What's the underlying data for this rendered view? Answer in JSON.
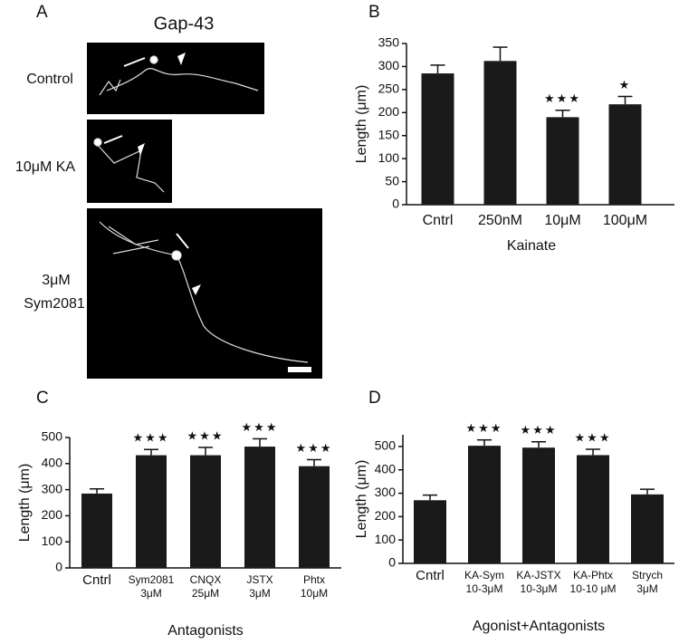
{
  "panel_a": {
    "letter": "A",
    "title": "Gap-43",
    "labels": [
      "Control",
      "10μM KA",
      "3μM",
      "Sym2081"
    ]
  },
  "chart_data": [
    {
      "type": "bar",
      "panel_label": "B",
      "ylabel": "Length (μm)",
      "xlabel": "Kainate",
      "categories": [
        "Cntrl",
        "250nM",
        "10μM",
        "100μM"
      ],
      "values": [
        285,
        312,
        190,
        218
      ],
      "errors": [
        18,
        30,
        15,
        17
      ],
      "significance": [
        null,
        null,
        "★★★",
        "★"
      ],
      "color": "#1a1a1a",
      "ylim": [
        0,
        350
      ],
      "yticks": [
        0,
        50,
        100,
        150,
        200,
        250,
        300,
        350
      ]
    },
    {
      "type": "bar",
      "panel_label": "C",
      "ylabel": "Length (μm)",
      "xlabel": "Antagonists",
      "categories": [
        [
          "Cntrl"
        ],
        [
          "Sym2081",
          "3μM"
        ],
        [
          "CNQX",
          "25μM"
        ],
        [
          "JSTX",
          "3μM"
        ],
        [
          "Phtx",
          "10μM"
        ]
      ],
      "values": [
        285,
        432,
        432,
        465,
        390
      ],
      "errors": [
        18,
        22,
        30,
        30,
        25
      ],
      "significance": [
        null,
        "★★★",
        "★★★",
        "★★★",
        "★★★"
      ],
      "color": "#1a1a1a",
      "ylim": [
        0,
        500
      ],
      "yticks": [
        0,
        100,
        200,
        300,
        400,
        500
      ]
    },
    {
      "type": "bar",
      "panel_label": "D",
      "ylabel": "Length (μm)",
      "xlabel": "Agonist+Antagonists",
      "categories": [
        [
          "Cntrl"
        ],
        [
          "KA-Sym",
          "10-3μM"
        ],
        [
          "KA-JSTX",
          "10-3μM"
        ],
        [
          "KA-Phtx",
          "10-10 μM"
        ],
        [
          "Strych",
          "3μM"
        ]
      ],
      "values": [
        270,
        503,
        495,
        463,
        295
      ],
      "errors": [
        22,
        25,
        25,
        25,
        22
      ],
      "significance": [
        null,
        "★★★",
        "★★★",
        "★★★",
        null
      ],
      "color": "#1a1a1a",
      "ylim": [
        0,
        550
      ],
      "yticks": [
        0,
        100,
        200,
        300,
        400,
        500
      ]
    }
  ]
}
